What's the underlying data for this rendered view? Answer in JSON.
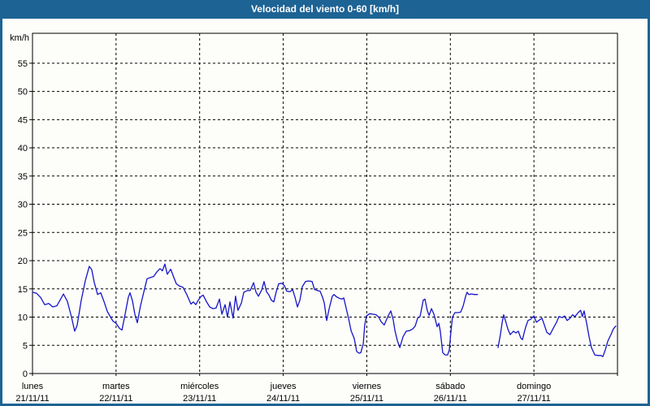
{
  "window": {
    "title": "Velocidad del viento 0-60 [km/h]"
  },
  "colors": {
    "titlebar_bg": "#1d6394",
    "window_border": "#1d6394",
    "plot_bg": "#fdfdfa",
    "grid": "#000000",
    "frame": "#000000",
    "line": "#1515c8",
    "title_text": "#ffffff"
  },
  "chart_data": {
    "type": "line",
    "title": "Velocidad del viento 0-60 [km/h]",
    "ylabel": "km/h",
    "ylim": [
      0,
      60.3
    ],
    "yticks": [
      0,
      5,
      10,
      15,
      20,
      25,
      30,
      35,
      40,
      45,
      50,
      55
    ],
    "xlim": [
      0,
      168
    ],
    "x_unit": "hours from Monday 00:00",
    "grid": "dashed",
    "legend": "none",
    "days": [
      {
        "name": "lunes",
        "date": "21/11/11"
      },
      {
        "name": "martes",
        "date": "22/11/11"
      },
      {
        "name": "miércoles",
        "date": "23/11/11"
      },
      {
        "name": "jueves",
        "date": "24/11/11"
      },
      {
        "name": "viernes",
        "date": "25/11/11"
      },
      {
        "name": "sábado",
        "date": "26/11/11"
      },
      {
        "name": "domingo",
        "date": "27/11/11"
      }
    ],
    "series": [
      {
        "name": "velocidad del viento",
        "color": "#1515c8",
        "segments": [
          [
            [
              0,
              14.4
            ],
            [
              1.2,
              14.2
            ],
            [
              2.3,
              13.5
            ],
            [
              3.5,
              12.2
            ],
            [
              4.7,
              12.4
            ],
            [
              5.8,
              11.8
            ],
            [
              7,
              12
            ],
            [
              7.9,
              13
            ],
            [
              8.9,
              14.1
            ],
            [
              10,
              12.8
            ],
            [
              11.2,
              10
            ],
            [
              12.1,
              7.5
            ],
            [
              12.8,
              8.5
            ],
            [
              14,
              13
            ],
            [
              15.2,
              16.5
            ],
            [
              16.3,
              19
            ],
            [
              17,
              18.4
            ],
            [
              17.7,
              16.2
            ],
            [
              18.7,
              14
            ],
            [
              19.6,
              14.3
            ],
            [
              20.5,
              12.8
            ],
            [
              21.5,
              11
            ],
            [
              22.4,
              10
            ],
            [
              23.1,
              9.3
            ],
            [
              24,
              8.9
            ],
            [
              25,
              8
            ],
            [
              25.7,
              7.7
            ],
            [
              26.6,
              10.5
            ],
            [
              27.5,
              13.5
            ],
            [
              28,
              14.3
            ],
            [
              28.7,
              12.9
            ],
            [
              29.4,
              10.5
            ],
            [
              30.1,
              9
            ],
            [
              31,
              12
            ],
            [
              32,
              14.5
            ],
            [
              32.9,
              16.8
            ],
            [
              33.8,
              17
            ],
            [
              34.8,
              17.2
            ],
            [
              35.7,
              18
            ],
            [
              36.6,
              18.6
            ],
            [
              37.3,
              18.2
            ],
            [
              38,
              19.4
            ],
            [
              38.7,
              17.6
            ],
            [
              39.7,
              18.5
            ],
            [
              40.6,
              17
            ],
            [
              41.3,
              15.9
            ],
            [
              42.2,
              15.5
            ],
            [
              43.2,
              15.3
            ],
            [
              44.3,
              14
            ],
            [
              45.5,
              12.3
            ],
            [
              46.2,
              12.7
            ],
            [
              46.9,
              12.2
            ],
            [
              47.6,
              13
            ],
            [
              48.3,
              13.6
            ],
            [
              49,
              13.9
            ],
            [
              49.9,
              12.8
            ],
            [
              50.9,
              11.8
            ],
            [
              51.8,
              11.5
            ],
            [
              52.7,
              11.6
            ],
            [
              53.7,
              13.2
            ],
            [
              54.4,
              10.5
            ],
            [
              55.3,
              12.2
            ],
            [
              56,
              10
            ],
            [
              56.7,
              12.7
            ],
            [
              57.6,
              9.8
            ],
            [
              58.3,
              13.7
            ],
            [
              59,
              11.2
            ],
            [
              60,
              12.5
            ],
            [
              60.7,
              14.4
            ],
            [
              61.6,
              14.7
            ],
            [
              62.5,
              14.7
            ],
            [
              63.5,
              16.1
            ],
            [
              64.2,
              14.4
            ],
            [
              64.9,
              13.7
            ],
            [
              65.8,
              14.8
            ],
            [
              66.5,
              16.3
            ],
            [
              67.2,
              14.5
            ],
            [
              67.9,
              13.9
            ],
            [
              68.6,
              13
            ],
            [
              69.3,
              12.7
            ],
            [
              70,
              14.5
            ],
            [
              70.7,
              15.9
            ],
            [
              71.6,
              16
            ],
            [
              72.3,
              15.6
            ],
            [
              73,
              14.6
            ],
            [
              74,
              14.5
            ],
            [
              74.7,
              14.9
            ],
            [
              75.4,
              13.5
            ],
            [
              76.1,
              11.8
            ],
            [
              76.8,
              13
            ],
            [
              77.5,
              15.4
            ],
            [
              78.4,
              16.3
            ],
            [
              79.3,
              16.4
            ],
            [
              80.3,
              16.3
            ],
            [
              81,
              14.9
            ],
            [
              81.9,
              14.7
            ],
            [
              82.6,
              14.6
            ],
            [
              83.3,
              13.5
            ],
            [
              83.8,
              12.5
            ],
            [
              84.5,
              9.4
            ],
            [
              85.2,
              11.5
            ],
            [
              86.1,
              13.7
            ],
            [
              86.6,
              14
            ],
            [
              87.3,
              13.6
            ],
            [
              88.2,
              13.3
            ],
            [
              88.9,
              13.2
            ],
            [
              89.4,
              13.4
            ],
            [
              90.3,
              11
            ],
            [
              90.8,
              9.7
            ],
            [
              91.5,
              7.6
            ],
            [
              92.4,
              6.2
            ],
            [
              93.1,
              3.9
            ],
            [
              93.8,
              3.6
            ],
            [
              94.3,
              3.7
            ],
            [
              95,
              5.3
            ],
            [
              95.4,
              8.6
            ],
            [
              95.9,
              10.2
            ],
            [
              96.8,
              10.6
            ],
            [
              97.8,
              10.5
            ],
            [
              98.7,
              10.4
            ],
            [
              99.4,
              10
            ],
            [
              100.1,
              9.2
            ],
            [
              101,
              8.6
            ],
            [
              102.2,
              10.3
            ],
            [
              102.9,
              11.1
            ],
            [
              103.6,
              9.5
            ],
            [
              104.1,
              7.6
            ],
            [
              104.8,
              5.8
            ],
            [
              105.5,
              4.6
            ],
            [
              106.4,
              6.5
            ],
            [
              107.3,
              7.5
            ],
            [
              108.3,
              7.6
            ],
            [
              109.2,
              7.9
            ],
            [
              109.9,
              8.4
            ],
            [
              110.6,
              9.8
            ],
            [
              111.3,
              10.1
            ],
            [
              112.2,
              13
            ],
            [
              112.7,
              13.2
            ],
            [
              113.4,
              11.1
            ],
            [
              113.9,
              10.3
            ],
            [
              114.6,
              11.5
            ],
            [
              115.3,
              10.5
            ],
            [
              116.2,
              8.3
            ],
            [
              116.7,
              8.9
            ],
            [
              117.1,
              7.5
            ],
            [
              117.8,
              3.7
            ],
            [
              118.5,
              3.3
            ],
            [
              119.2,
              3.3
            ],
            [
              119.7,
              4.2
            ],
            [
              120.2,
              7.6
            ],
            [
              120.6,
              10
            ],
            [
              121.3,
              10.8
            ],
            [
              122.3,
              10.8
            ],
            [
              123,
              10.9
            ],
            [
              123.7,
              12
            ],
            [
              124.4,
              13.7
            ],
            [
              124.8,
              14.4
            ],
            [
              125.3,
              14
            ],
            [
              126,
              14.1
            ],
            [
              126.9,
              14
            ],
            [
              127.8,
              14
            ]
          ],
          [
            [
              133.7,
              4.6
            ],
            [
              134.4,
              7
            ],
            [
              134.9,
              9.1
            ],
            [
              135.3,
              10.4
            ],
            [
              136,
              9
            ],
            [
              136.5,
              7.9
            ],
            [
              137.2,
              6.9
            ],
            [
              138.1,
              7.5
            ],
            [
              138.8,
              7.2
            ],
            [
              139.5,
              7.5
            ],
            [
              140.2,
              6.3
            ],
            [
              140.7,
              6
            ],
            [
              141.6,
              8.2
            ],
            [
              142.3,
              9.4
            ],
            [
              143,
              9.6
            ],
            [
              144,
              10.2
            ],
            [
              144.7,
              9.1
            ],
            [
              145.4,
              9.4
            ],
            [
              146.3,
              9.8
            ],
            [
              147,
              8.6
            ],
            [
              147.7,
              7.3
            ],
            [
              148.6,
              6.9
            ],
            [
              149.8,
              8.3
            ],
            [
              150.5,
              9.1
            ],
            [
              151.2,
              10.1
            ],
            [
              152.1,
              9.9
            ],
            [
              152.8,
              10.2
            ],
            [
              153.5,
              9.4
            ],
            [
              154.4,
              9.8
            ],
            [
              155.1,
              10.4
            ],
            [
              155.8,
              10.1
            ],
            [
              156.7,
              10.8
            ],
            [
              157.4,
              11.2
            ],
            [
              157.9,
              10.1
            ],
            [
              158.4,
              11.1
            ],
            [
              159.1,
              9
            ],
            [
              159.8,
              6.6
            ],
            [
              160.5,
              4.6
            ],
            [
              161.5,
              3.3
            ],
            [
              162.4,
              3.2
            ],
            [
              163.3,
              3.2
            ],
            [
              163.8,
              3
            ],
            [
              164.5,
              4.2
            ],
            [
              165.2,
              5.7
            ],
            [
              166.1,
              6.9
            ],
            [
              166.8,
              7.9
            ],
            [
              167.5,
              8.4
            ]
          ]
        ]
      }
    ]
  }
}
